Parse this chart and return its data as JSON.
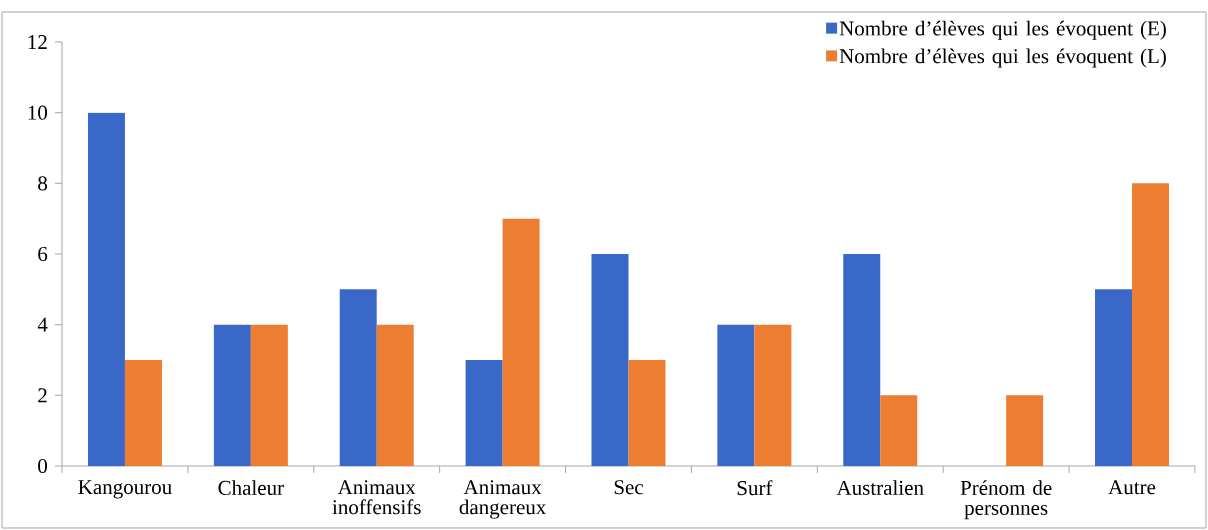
{
  "chart_data": {
    "type": "bar",
    "categories": [
      "Kangourou",
      "Chaleur",
      "Animaux inoffensifs",
      "Animaux dangereux",
      "Sec",
      "Surf",
      "Australien",
      "Prénom de personnes",
      "Autre"
    ],
    "series": [
      {
        "name": "Nombre d’élèves qui les évoquent (E)",
        "color": "#3a68c8",
        "values": [
          10,
          4,
          5,
          3,
          6,
          4,
          6,
          0,
          5
        ]
      },
      {
        "name": "Nombre d’élèves qui les évoquent (L)",
        "color": "#ed7d31",
        "values": [
          3,
          4,
          4,
          7,
          3,
          4,
          2,
          2,
          8
        ]
      }
    ],
    "ylim": [
      0,
      12
    ],
    "yticks": [
      0,
      2,
      4,
      6,
      8,
      10,
      12
    ],
    "grid": false,
    "legend": "top right"
  }
}
